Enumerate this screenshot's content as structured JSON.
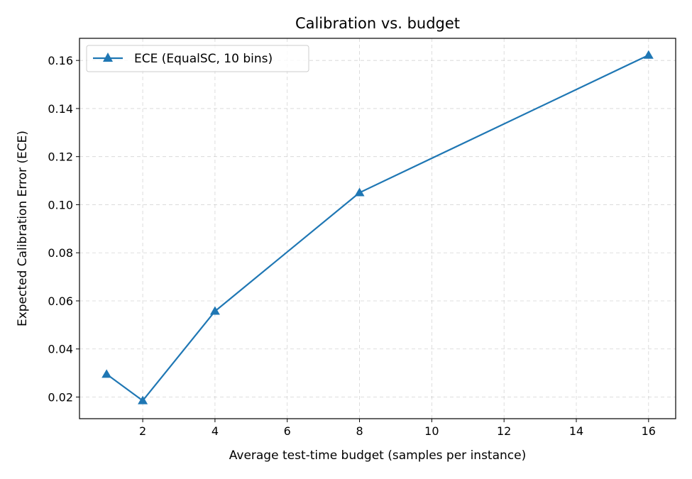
{
  "chart_data": {
    "type": "line",
    "title": "Calibration vs. budget",
    "xlabel": "Average test-time budget (samples per instance)",
    "ylabel": "Expected Calibration Error (ECE)",
    "xlim": [
      0.25,
      16.75
    ],
    "ylim": [
      0.011,
      0.1692
    ],
    "xticks": [
      2,
      4,
      6,
      8,
      10,
      12,
      14,
      16
    ],
    "yticks": [
      0.02,
      0.04,
      0.06,
      0.08,
      0.1,
      0.12,
      0.14,
      0.16
    ],
    "ytick_labels": [
      "0.02",
      "0.04",
      "0.06",
      "0.08",
      "0.10",
      "0.12",
      "0.14",
      "0.16"
    ],
    "grid": true,
    "legend_position": "upper-left",
    "series": [
      {
        "name": "ECE (EqualSC, 10 bins)",
        "color": "#1f77b4",
        "marker": "triangle-up",
        "x": [
          1,
          2,
          4,
          8,
          16
        ],
        "y": [
          0.0295,
          0.0185,
          0.0557,
          0.105,
          0.1622
        ]
      }
    ]
  }
}
